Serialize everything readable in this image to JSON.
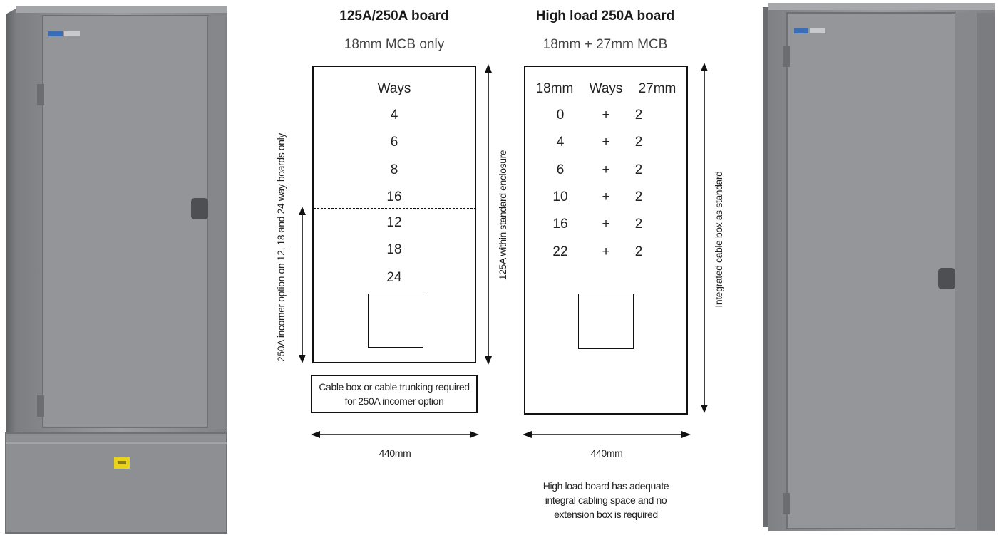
{
  "left_board": {
    "title": "125A/250A board",
    "subtitle": "18mm MCB only",
    "ways_heading": "Ways",
    "ways_upper": [
      "4",
      "6",
      "8",
      "16"
    ],
    "ways_lower": [
      "12",
      "18",
      "24"
    ],
    "left_dimension_label": "250A incomer option on 12, 18 and 24 way boards only",
    "right_dimension_label": "125A within standard enclosure",
    "cable_box_note": "Cable box or cable trunking required for 250A incomer option",
    "width_label": "440mm"
  },
  "right_board": {
    "title": "High load 250A board",
    "subtitle": "18mm + 27mm MCB",
    "headers": {
      "col18": "18mm",
      "ways": "Ways",
      "col27": "27mm"
    },
    "rows": [
      {
        "col18": "0",
        "plus": "+",
        "col27": "2"
      },
      {
        "col18": "4",
        "plus": "+",
        "col27": "2"
      },
      {
        "col18": "6",
        "plus": "+",
        "col27": "2"
      },
      {
        "col18": "10",
        "plus": "+",
        "col27": "2"
      },
      {
        "col18": "16",
        "plus": "+",
        "col27": "2"
      },
      {
        "col18": "22",
        "plus": "+",
        "col27": "2"
      }
    ],
    "right_dimension_label": "Integrated cable box as standard",
    "width_label": "440mm",
    "footnote": [
      "High load board has adequate",
      "integral cabling space and no",
      "extension box is required"
    ]
  },
  "colors": {
    "cabinet": "#8f9194",
    "label": "#e8d21a",
    "line": "#111111"
  }
}
